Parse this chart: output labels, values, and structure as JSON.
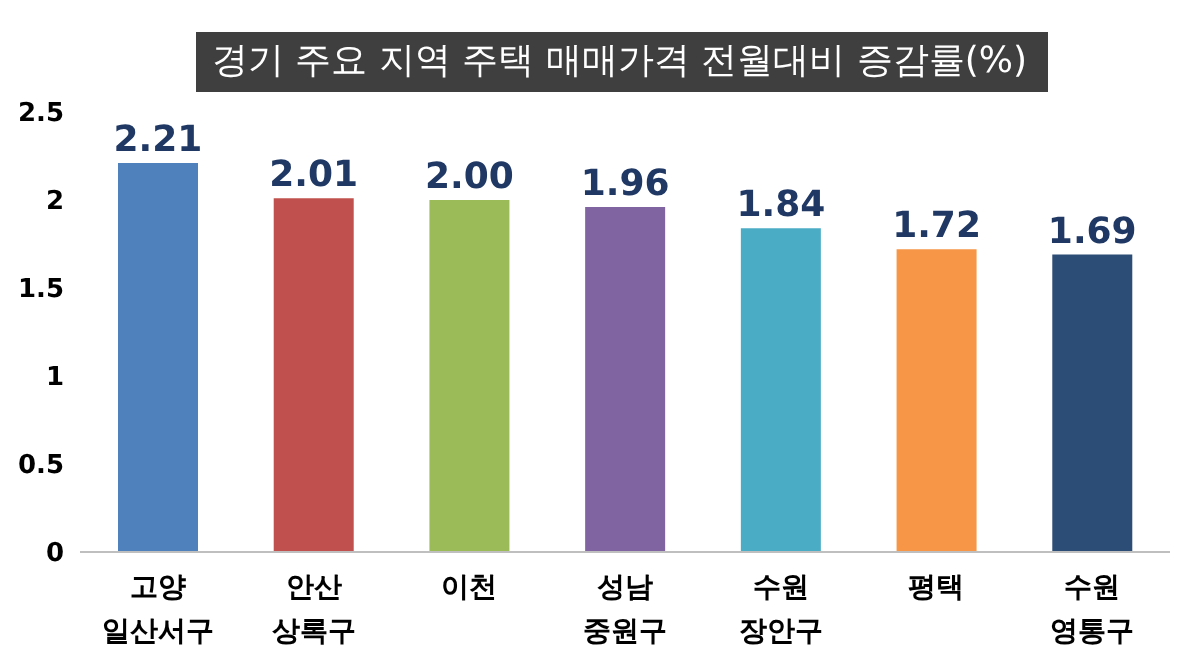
{
  "chart_data": {
    "type": "bar",
    "title": "경기 주요 지역 주택 매매가격 전월대비 증감률(%)",
    "categories": [
      "고양\n일산서구",
      "안산\n상록구",
      "이천",
      "성남\n중원구",
      "수원\n장안구",
      "평택",
      "수원\n영통구"
    ],
    "values": [
      2.21,
      2.01,
      2.0,
      1.96,
      1.84,
      1.72,
      1.69
    ],
    "value_labels": [
      "2.21",
      "2.01",
      "2.00",
      "1.96",
      "1.84",
      "1.72",
      "1.69"
    ],
    "colors": [
      "#4f81bd",
      "#c0504d",
      "#9bbb59",
      "#8064a2",
      "#4bacc6",
      "#f79646",
      "#2c4d75"
    ],
    "ylim": [
      0,
      2.5
    ],
    "yticks": [
      0,
      0.5,
      1,
      1.5,
      2,
      2.5
    ],
    "grid": false
  }
}
